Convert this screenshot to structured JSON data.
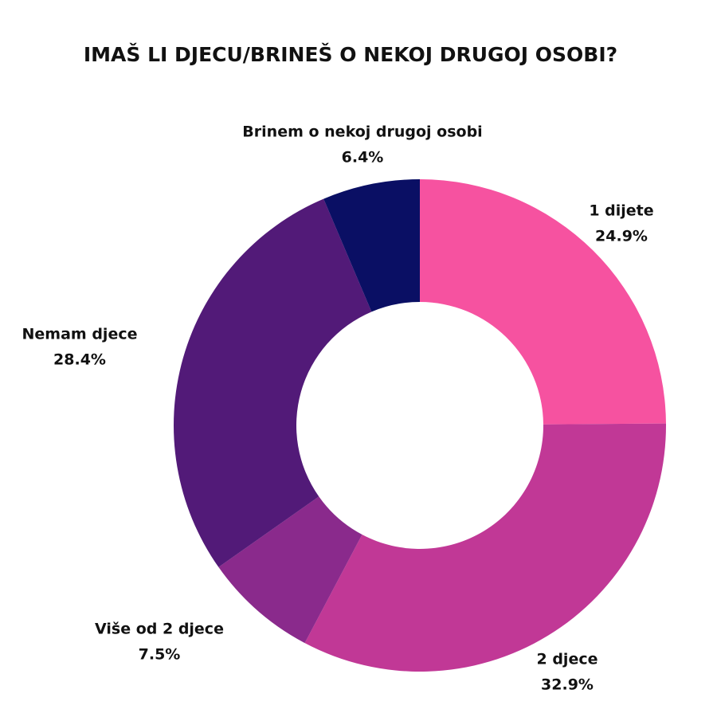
{
  "chart_data": {
    "type": "donut",
    "title": "IMAŠ LI DJECU/BRINEŠ O NEKOJ DRUGOJ OSOBI?",
    "categories": [
      "1 dijete",
      "2 djece",
      "Više od 2 djece",
      "Nemam djece",
      "Brinem o nekoj drugoj osobi"
    ],
    "values": [
      24.9,
      32.9,
      7.5,
      28.4,
      6.4
    ],
    "value_labels": [
      "24.9%",
      "32.9%",
      "7.5%",
      "28.4%",
      "6.4%"
    ],
    "colors": [
      "#f652a0",
      "#c13896",
      "#8a2a8c",
      "#521a78",
      "#0a0f64"
    ]
  }
}
